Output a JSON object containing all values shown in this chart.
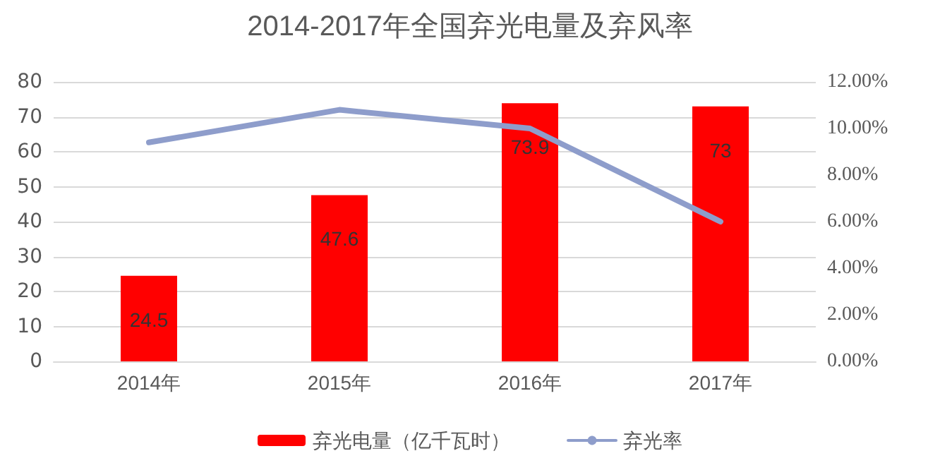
{
  "chart_data": {
    "type": "bar",
    "title": "2014-2017年全国弃光电量及弃风率",
    "categories": [
      "2014年",
      "2015年",
      "2016年",
      "2017年"
    ],
    "series": [
      {
        "name": "弃光电量（亿千瓦时）",
        "color": "#ff0000",
        "values": [
          24.5,
          47.6,
          73.9,
          73
        ],
        "value_labels": [
          "24.5",
          "47.6",
          "73.9",
          "73"
        ]
      },
      {
        "name": "弃光率",
        "type": "line",
        "axis": "y2",
        "color": "#8e9dcb",
        "values": [
          9.4,
          10.8,
          10.0,
          6.0
        ]
      }
    ],
    "ylim": [
      0,
      80
    ],
    "yticks": [
      0,
      10,
      20,
      30,
      40,
      50,
      60,
      70,
      80
    ],
    "y2lim": [
      0,
      12
    ],
    "y2ticks": [
      {
        "value": 0,
        "label": "0.00%"
      },
      {
        "value": 2,
        "label": "2.00%"
      },
      {
        "value": 4,
        "label": "4.00%"
      },
      {
        "value": 6,
        "label": "6.00%"
      },
      {
        "value": 8,
        "label": "8.00%"
      },
      {
        "value": 10,
        "label": "10.00%"
      },
      {
        "value": 12,
        "label": "12.00%"
      }
    ],
    "grid": "y",
    "legend": "bottom",
    "marker": "none"
  }
}
